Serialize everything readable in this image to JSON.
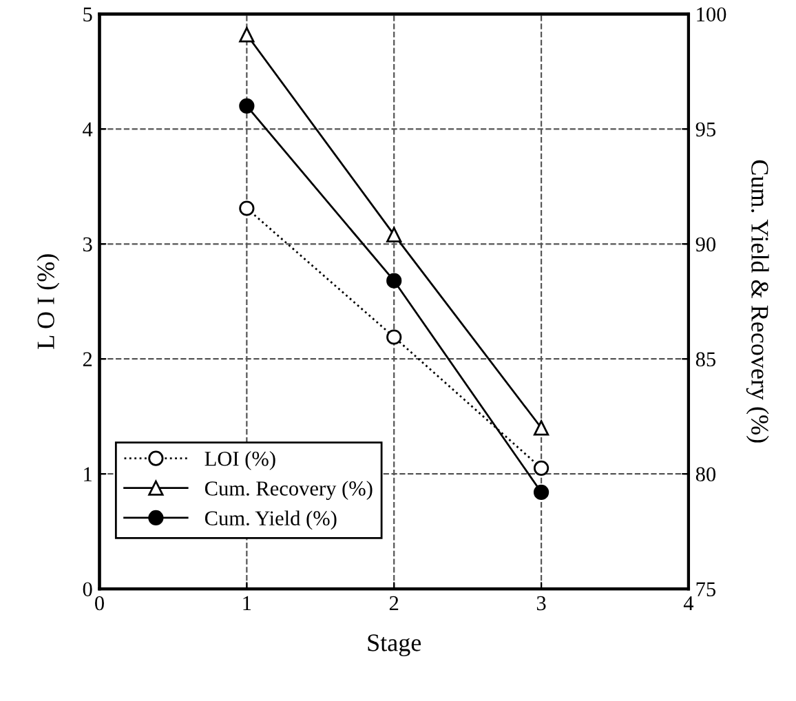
{
  "chart_data": {
    "type": "line",
    "xlabel": "Stage",
    "ylabel": "L O I (%)",
    "y2label": "Cum. Yield & Recovery (%)",
    "xlim": [
      0,
      4
    ],
    "xticks": [
      0,
      1,
      2,
      3,
      4
    ],
    "ylim": [
      0,
      5
    ],
    "yticks": [
      0,
      1,
      2,
      3,
      4,
      5
    ],
    "y2lim": [
      75,
      100
    ],
    "y2ticks": [
      75,
      80,
      85,
      90,
      95,
      100
    ],
    "grid": true,
    "legend": "bottom left",
    "series": [
      {
        "name": "LOI (%)",
        "color": "#000000",
        "x": [
          1,
          2,
          3
        ],
        "values": [
          3.31,
          2.19,
          1.05
        ],
        "marker": "circle",
        "line_style": "dotted"
      },
      {
        "name": "Cum. Recovery (%)",
        "color": "#000000",
        "x": [
          1,
          2,
          3
        ],
        "values": [
          99.1,
          90.4,
          82.0
        ],
        "marker": "triangle",
        "line_style": "solid",
        "axis": "y2"
      },
      {
        "name": "Cum. Yield (%)",
        "color": "#000000",
        "x": [
          1,
          2,
          3
        ],
        "values": [
          96.0,
          88.4,
          79.2
        ],
        "marker": "circle",
        "line_style": "solid",
        "axis": "y2"
      }
    ]
  }
}
